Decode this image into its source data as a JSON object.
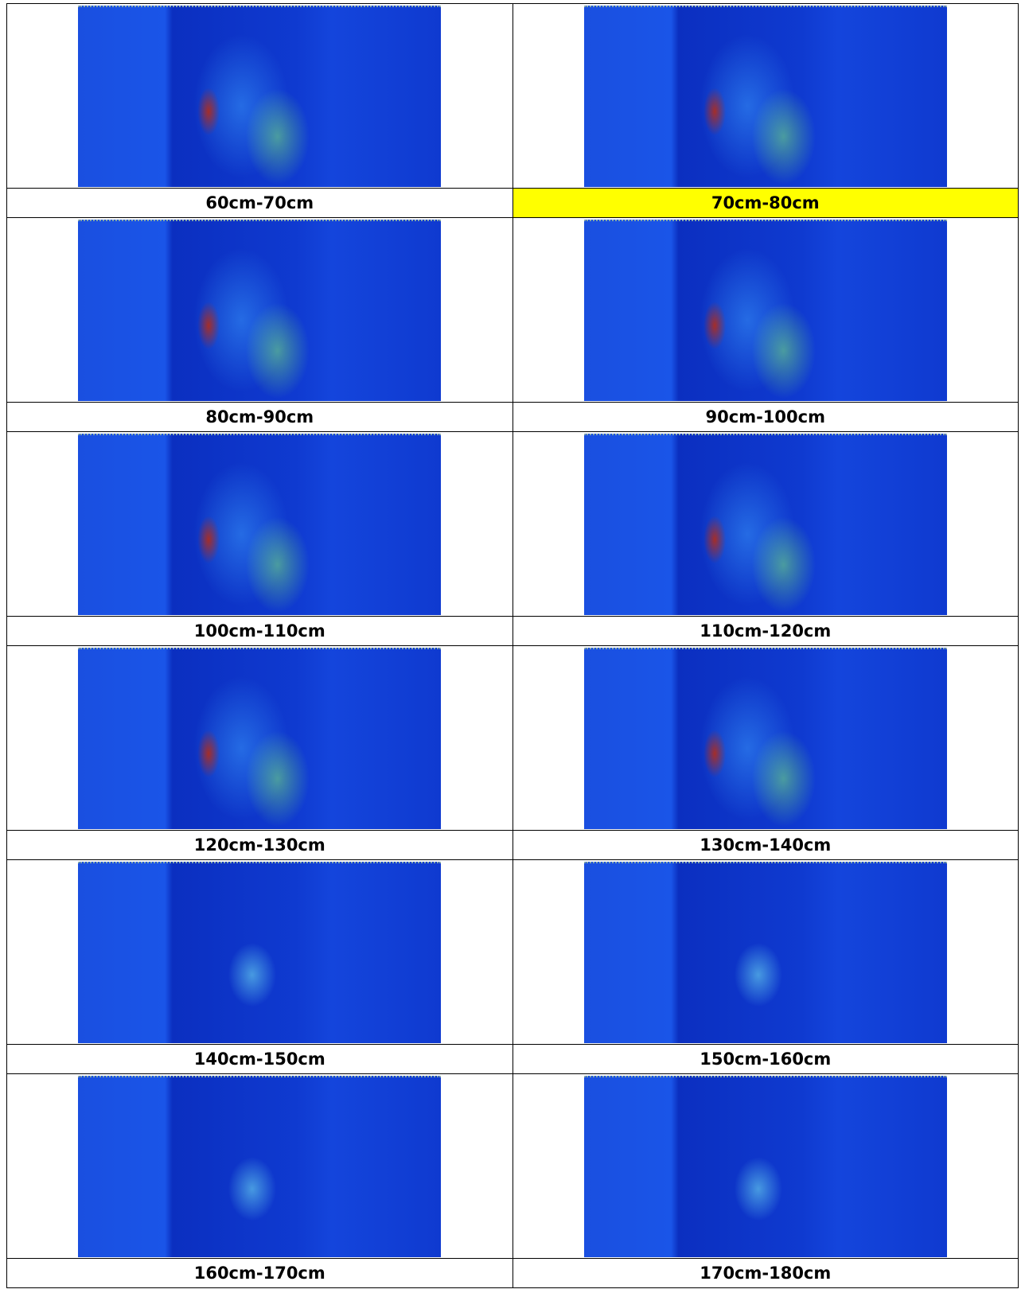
{
  "rows": [
    [
      {
        "label": "60cm-70cm"
      },
      {
        "label": "70cm-80cm",
        "highlight_color": "#ffff00"
      }
    ],
    [
      {
        "label": "80cm-90cm"
      },
      {
        "label": "90cm-100cm"
      }
    ],
    [
      {
        "label": "100cm-110cm"
      },
      {
        "label": "110cm-120cm"
      }
    ],
    [
      {
        "label": "120cm-130cm"
      },
      {
        "label": "130cm-140cm"
      }
    ],
    [
      {
        "label": "140cm-150cm"
      },
      {
        "label": "150cm-160cm"
      }
    ],
    [
      {
        "label": "160cm-170cm"
      },
      {
        "label": "170cm-180cm"
      }
    ]
  ]
}
